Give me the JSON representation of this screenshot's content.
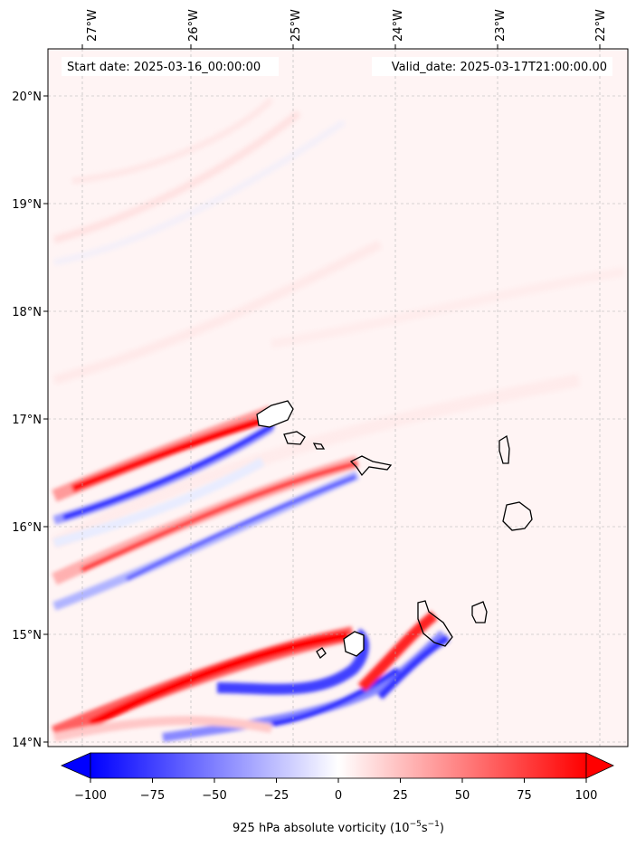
{
  "header": {
    "start_date": "Start date: 2025-03-16_00:00:00",
    "valid_date": "Valid_date: 2025-03-17T21:00:00.00"
  },
  "axes": {
    "lon_ticks": [
      "27°W",
      "26°W",
      "25°W",
      "24°W",
      "23°W",
      "22°W"
    ],
    "lat_ticks": [
      "20°N",
      "19°N",
      "18°N",
      "17°N",
      "16°N",
      "15°N",
      "14°N"
    ],
    "lon_range": [
      -27.3,
      -21.8
    ],
    "lat_range": [
      13.95,
      20.45
    ]
  },
  "colorbar": {
    "ticks": [
      "−100",
      "−75",
      "−50",
      "−25",
      "0",
      "25",
      "50",
      "75",
      "100"
    ],
    "label_main": "925 hPa absolute vorticity (10",
    "label_exp1": "−5",
    "label_mid": "s",
    "label_exp2": "−1",
    "label_end": ")",
    "range": [
      -100,
      100
    ],
    "colormap": "bwr",
    "extend": "both"
  },
  "colors": {
    "positive": "#ff0000",
    "negative": "#0000ff",
    "neutral": "#ffffff",
    "coastline": "#000000",
    "grid": "#b0b0b0"
  }
}
